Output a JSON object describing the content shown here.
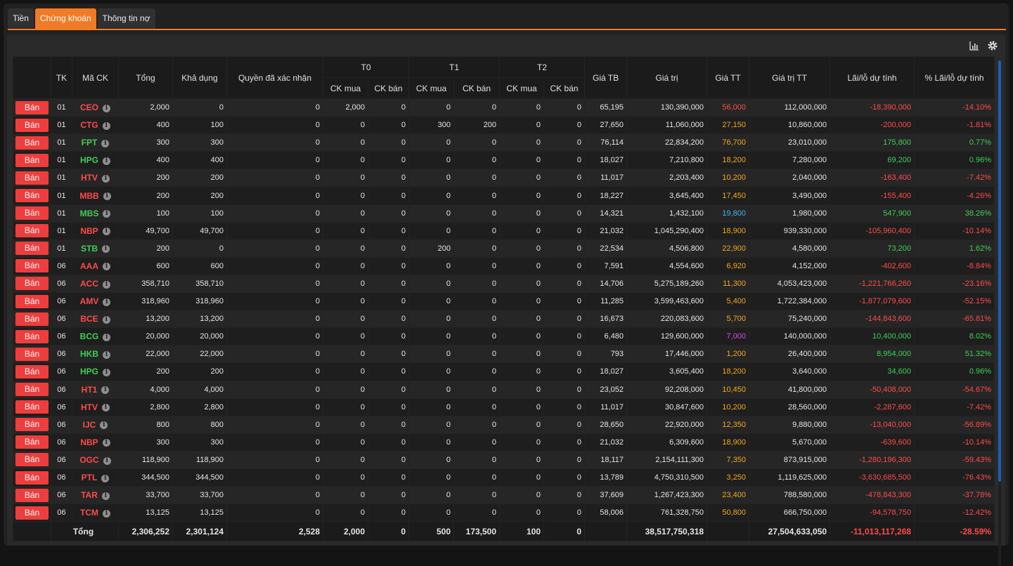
{
  "tabs": [
    {
      "label": "Tiền",
      "active": false
    },
    {
      "label": "Chứng khoán",
      "active": true
    },
    {
      "label": "Thông tin nợ",
      "active": false
    }
  ],
  "toolbar": {
    "chart_icon": "bar-chart-icon",
    "settings_icon": "gear-icon"
  },
  "colors": {
    "accent": "#f07b26",
    "sell_button": "#ef3d3d",
    "up": "#3fcf55",
    "down": "#ff4b4b",
    "ref": "#f3a821",
    "ceiling": "#d34ce8",
    "floor": "#3cb8ef"
  },
  "headers": {
    "tk": "TK",
    "symbol": "Mã CK",
    "total": "Tổng",
    "available": "Khả dụng",
    "rights": "Quyền đã xác nhận",
    "t0": "T0",
    "t1": "T1",
    "t2": "T2",
    "ck_buy": "CK mua",
    "ck_sell": "CK bán",
    "avg_price": "Giá TB",
    "value": "Giá trị",
    "market_price": "Giá TT",
    "market_value": "Giá trị TT",
    "pnl": "Lãi/lỗ dự tính",
    "pnl_pct": "% Lãi/lỗ dự tính"
  },
  "sell_label": "Bán",
  "rows": [
    {
      "tk": "01",
      "sym": "CEO",
      "sym_color": "red",
      "total": "2,000",
      "avail": "0",
      "rights": "0",
      "t0b": "2,000",
      "t0s": "0",
      "t1b": "0",
      "t1s": "0",
      "t2b": "0",
      "t2s": "0",
      "avg": "65,195",
      "value": "130,390,000",
      "mp": "56,000",
      "mp_color": "red",
      "mv": "112,000,000",
      "pnl": "-18,390,000",
      "pnl_pct": "-14.10%",
      "pnl_color": "red"
    },
    {
      "tk": "01",
      "sym": "CTG",
      "sym_color": "red",
      "total": "400",
      "avail": "100",
      "rights": "0",
      "t0b": "0",
      "t0s": "0",
      "t1b": "300",
      "t1s": "200",
      "t2b": "0",
      "t2s": "0",
      "avg": "27,650",
      "value": "11,060,000",
      "mp": "27,150",
      "mp_color": "yellow",
      "mv": "10,860,000",
      "pnl": "-200,000",
      "pnl_pct": "-1.81%",
      "pnl_color": "red"
    },
    {
      "tk": "01",
      "sym": "FPT",
      "sym_color": "green",
      "total": "300",
      "avail": "300",
      "rights": "0",
      "t0b": "0",
      "t0s": "0",
      "t1b": "0",
      "t1s": "0",
      "t2b": "0",
      "t2s": "0",
      "avg": "76,114",
      "value": "22,834,200",
      "mp": "76,700",
      "mp_color": "yellow",
      "mv": "23,010,000",
      "pnl": "175,800",
      "pnl_pct": "0.77%",
      "pnl_color": "green"
    },
    {
      "tk": "01",
      "sym": "HPG",
      "sym_color": "green",
      "total": "400",
      "avail": "400",
      "rights": "0",
      "t0b": "0",
      "t0s": "0",
      "t1b": "0",
      "t1s": "0",
      "t2b": "0",
      "t2s": "0",
      "avg": "18,027",
      "value": "7,210,800",
      "mp": "18,200",
      "mp_color": "yellow",
      "mv": "7,280,000",
      "pnl": "69,200",
      "pnl_pct": "0.96%",
      "pnl_color": "green"
    },
    {
      "tk": "01",
      "sym": "HTV",
      "sym_color": "red",
      "total": "200",
      "avail": "200",
      "rights": "0",
      "t0b": "0",
      "t0s": "0",
      "t1b": "0",
      "t1s": "0",
      "t2b": "0",
      "t2s": "0",
      "avg": "11,017",
      "value": "2,203,400",
      "mp": "10,200",
      "mp_color": "yellow",
      "mv": "2,040,000",
      "pnl": "-163,400",
      "pnl_pct": "-7.42%",
      "pnl_color": "red"
    },
    {
      "tk": "01",
      "sym": "MBB",
      "sym_color": "red",
      "total": "200",
      "avail": "200",
      "rights": "0",
      "t0b": "0",
      "t0s": "0",
      "t1b": "0",
      "t1s": "0",
      "t2b": "0",
      "t2s": "0",
      "avg": "18,227",
      "value": "3,645,400",
      "mp": "17,450",
      "mp_color": "yellow",
      "mv": "3,490,000",
      "pnl": "-155,400",
      "pnl_pct": "-4.26%",
      "pnl_color": "red"
    },
    {
      "tk": "01",
      "sym": "MBS",
      "sym_color": "green",
      "total": "100",
      "avail": "100",
      "rights": "0",
      "t0b": "0",
      "t0s": "0",
      "t1b": "0",
      "t1s": "0",
      "t2b": "0",
      "t2s": "0",
      "avg": "14,321",
      "value": "1,432,100",
      "mp": "19,800",
      "mp_color": "cyan",
      "mv": "1,980,000",
      "pnl": "547,900",
      "pnl_pct": "38.26%",
      "pnl_color": "green"
    },
    {
      "tk": "01",
      "sym": "NBP",
      "sym_color": "red",
      "total": "49,700",
      "avail": "49,700",
      "rights": "0",
      "t0b": "0",
      "t0s": "0",
      "t1b": "0",
      "t1s": "0",
      "t2b": "0",
      "t2s": "0",
      "avg": "21,032",
      "value": "1,045,290,400",
      "mp": "18,900",
      "mp_color": "yellow",
      "mv": "939,330,000",
      "pnl": "-105,960,400",
      "pnl_pct": "-10.14%",
      "pnl_color": "red"
    },
    {
      "tk": "01",
      "sym": "STB",
      "sym_color": "green",
      "total": "200",
      "avail": "0",
      "rights": "0",
      "t0b": "0",
      "t0s": "0",
      "t1b": "200",
      "t1s": "0",
      "t2b": "0",
      "t2s": "0",
      "avg": "22,534",
      "value": "4,506,800",
      "mp": "22,900",
      "mp_color": "yellow",
      "mv": "4,580,000",
      "pnl": "73,200",
      "pnl_pct": "1.62%",
      "pnl_color": "green"
    },
    {
      "tk": "06",
      "sym": "AAA",
      "sym_color": "red",
      "total": "600",
      "avail": "600",
      "rights": "0",
      "t0b": "0",
      "t0s": "0",
      "t1b": "0",
      "t1s": "0",
      "t2b": "0",
      "t2s": "0",
      "avg": "7,591",
      "value": "4,554,600",
      "mp": "6,920",
      "mp_color": "yellow",
      "mv": "4,152,000",
      "pnl": "-402,600",
      "pnl_pct": "-8.84%",
      "pnl_color": "red"
    },
    {
      "tk": "06",
      "sym": "ACC",
      "sym_color": "red",
      "total": "358,710",
      "avail": "358,710",
      "rights": "0",
      "t0b": "0",
      "t0s": "0",
      "t1b": "0",
      "t1s": "0",
      "t2b": "0",
      "t2s": "0",
      "avg": "14,706",
      "value": "5,275,189,260",
      "mp": "11,300",
      "mp_color": "yellow",
      "mv": "4,053,423,000",
      "pnl": "-1,221,766,260",
      "pnl_pct": "-23.16%",
      "pnl_color": "red"
    },
    {
      "tk": "06",
      "sym": "AMV",
      "sym_color": "red",
      "total": "318,960",
      "avail": "318,960",
      "rights": "0",
      "t0b": "0",
      "t0s": "0",
      "t1b": "0",
      "t1s": "0",
      "t2b": "0",
      "t2s": "0",
      "avg": "11,285",
      "value": "3,599,463,600",
      "mp": "5,400",
      "mp_color": "yellow",
      "mv": "1,722,384,000",
      "pnl": "-1,877,079,600",
      "pnl_pct": "-52.15%",
      "pnl_color": "red"
    },
    {
      "tk": "06",
      "sym": "BCE",
      "sym_color": "red",
      "total": "13,200",
      "avail": "13,200",
      "rights": "0",
      "t0b": "0",
      "t0s": "0",
      "t1b": "0",
      "t1s": "0",
      "t2b": "0",
      "t2s": "0",
      "avg": "16,673",
      "value": "220,083,600",
      "mp": "5,700",
      "mp_color": "yellow",
      "mv": "75,240,000",
      "pnl": "-144,843,600",
      "pnl_pct": "-65.81%",
      "pnl_color": "red"
    },
    {
      "tk": "06",
      "sym": "BCG",
      "sym_color": "green",
      "total": "20,000",
      "avail": "20,000",
      "rights": "0",
      "t0b": "0",
      "t0s": "0",
      "t1b": "0",
      "t1s": "0",
      "t2b": "0",
      "t2s": "0",
      "avg": "6,480",
      "value": "129,600,000",
      "mp": "7,000",
      "mp_color": "purple",
      "mv": "140,000,000",
      "pnl": "10,400,000",
      "pnl_pct": "8.02%",
      "pnl_color": "green"
    },
    {
      "tk": "06",
      "sym": "HKB",
      "sym_color": "green",
      "total": "22,000",
      "avail": "22,000",
      "rights": "0",
      "t0b": "0",
      "t0s": "0",
      "t1b": "0",
      "t1s": "0",
      "t2b": "0",
      "t2s": "0",
      "avg": "793",
      "value": "17,446,000",
      "mp": "1,200",
      "mp_color": "yellow",
      "mv": "26,400,000",
      "pnl": "8,954,000",
      "pnl_pct": "51.32%",
      "pnl_color": "green"
    },
    {
      "tk": "06",
      "sym": "HPG",
      "sym_color": "green",
      "total": "200",
      "avail": "200",
      "rights": "0",
      "t0b": "0",
      "t0s": "0",
      "t1b": "0",
      "t1s": "0",
      "t2b": "0",
      "t2s": "0",
      "avg": "18,027",
      "value": "3,605,400",
      "mp": "18,200",
      "mp_color": "yellow",
      "mv": "3,640,000",
      "pnl": "34,600",
      "pnl_pct": "0.96%",
      "pnl_color": "green"
    },
    {
      "tk": "06",
      "sym": "HT1",
      "sym_color": "red",
      "total": "4,000",
      "avail": "4,000",
      "rights": "0",
      "t0b": "0",
      "t0s": "0",
      "t1b": "0",
      "t1s": "0",
      "t2b": "0",
      "t2s": "0",
      "avg": "23,052",
      "value": "92,208,000",
      "mp": "10,450",
      "mp_color": "yellow",
      "mv": "41,800,000",
      "pnl": "-50,408,000",
      "pnl_pct": "-54.67%",
      "pnl_color": "red"
    },
    {
      "tk": "06",
      "sym": "HTV",
      "sym_color": "red",
      "total": "2,800",
      "avail": "2,800",
      "rights": "0",
      "t0b": "0",
      "t0s": "0",
      "t1b": "0",
      "t1s": "0",
      "t2b": "0",
      "t2s": "0",
      "avg": "11,017",
      "value": "30,847,600",
      "mp": "10,200",
      "mp_color": "yellow",
      "mv": "28,560,000",
      "pnl": "-2,287,600",
      "pnl_pct": "-7.42%",
      "pnl_color": "red"
    },
    {
      "tk": "06",
      "sym": "IJC",
      "sym_color": "red",
      "total": "800",
      "avail": "800",
      "rights": "0",
      "t0b": "0",
      "t0s": "0",
      "t1b": "0",
      "t1s": "0",
      "t2b": "0",
      "t2s": "0",
      "avg": "28,650",
      "value": "22,920,000",
      "mp": "12,350",
      "mp_color": "yellow",
      "mv": "9,880,000",
      "pnl": "-13,040,000",
      "pnl_pct": "-56.89%",
      "pnl_color": "red"
    },
    {
      "tk": "06",
      "sym": "NBP",
      "sym_color": "red",
      "total": "300",
      "avail": "300",
      "rights": "0",
      "t0b": "0",
      "t0s": "0",
      "t1b": "0",
      "t1s": "0",
      "t2b": "0",
      "t2s": "0",
      "avg": "21,032",
      "value": "6,309,600",
      "mp": "18,900",
      "mp_color": "yellow",
      "mv": "5,670,000",
      "pnl": "-639,600",
      "pnl_pct": "-10.14%",
      "pnl_color": "red"
    },
    {
      "tk": "06",
      "sym": "OGC",
      "sym_color": "red",
      "total": "118,900",
      "avail": "118,900",
      "rights": "0",
      "t0b": "0",
      "t0s": "0",
      "t1b": "0",
      "t1s": "0",
      "t2b": "0",
      "t2s": "0",
      "avg": "18,117",
      "value": "2,154,111,300",
      "mp": "7,350",
      "mp_color": "yellow",
      "mv": "873,915,000",
      "pnl": "-1,280,196,300",
      "pnl_pct": "-59.43%",
      "pnl_color": "red"
    },
    {
      "tk": "06",
      "sym": "PTL",
      "sym_color": "red",
      "total": "344,500",
      "avail": "344,500",
      "rights": "0",
      "t0b": "0",
      "t0s": "0",
      "t1b": "0",
      "t1s": "0",
      "t2b": "0",
      "t2s": "0",
      "avg": "13,789",
      "value": "4,750,310,500",
      "mp": "3,250",
      "mp_color": "yellow",
      "mv": "1,119,625,000",
      "pnl": "-3,630,685,500",
      "pnl_pct": "-76.43%",
      "pnl_color": "red"
    },
    {
      "tk": "06",
      "sym": "TAR",
      "sym_color": "red",
      "total": "33,700",
      "avail": "33,700",
      "rights": "0",
      "t0b": "0",
      "t0s": "0",
      "t1b": "0",
      "t1s": "0",
      "t2b": "0",
      "t2s": "0",
      "avg": "37,609",
      "value": "1,267,423,300",
      "mp": "23,400",
      "mp_color": "yellow",
      "mv": "788,580,000",
      "pnl": "-478,843,300",
      "pnl_pct": "-37.78%",
      "pnl_color": "red"
    },
    {
      "tk": "06",
      "sym": "TCM",
      "sym_color": "red",
      "total": "13,125",
      "avail": "13,125",
      "rights": "0",
      "t0b": "0",
      "t0s": "0",
      "t1b": "0",
      "t1s": "0",
      "t2b": "0",
      "t2s": "0",
      "avg": "58,006",
      "value": "761,328,750",
      "mp": "50,800",
      "mp_color": "yellow",
      "mv": "666,750,000",
      "pnl": "-94,578,750",
      "pnl_pct": "-12.42%",
      "pnl_color": "red"
    }
  ],
  "totals": {
    "label": "Tổng",
    "total": "2,306,252",
    "avail": "2,301,124",
    "rights": "2,528",
    "t0b": "2,000",
    "t0s": "0",
    "t1b": "500",
    "t1s": "173,500",
    "t2b": "100",
    "t2s": "0",
    "value": "38,517,750,318",
    "mv": "27,504,633,050",
    "pnl": "-11,013,117,268",
    "pnl_pct": "-28.59%",
    "pnl_color": "red"
  }
}
